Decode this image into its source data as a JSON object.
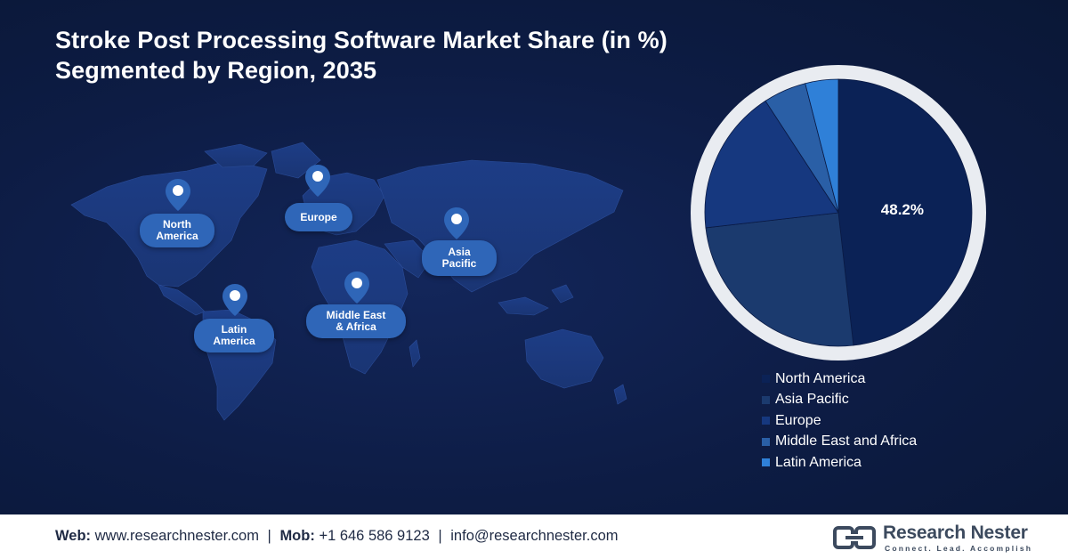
{
  "title": {
    "line1": "Stroke Post Processing Software Market Share (in %)",
    "line2": "Segmented by Region, 2035"
  },
  "map": {
    "regions": [
      {
        "key": "north_america",
        "label_line1": "North",
        "label_line2": "America"
      },
      {
        "key": "europe",
        "label_line1": "Europe",
        "label_line2": ""
      },
      {
        "key": "asia_pacific",
        "label_line1": "Asia",
        "label_line2": "Pacific"
      },
      {
        "key": "latin_america",
        "label_line1": "Latin",
        "label_line2": "America"
      },
      {
        "key": "middle_east_africa",
        "label_line1": "Middle East",
        "label_line2": "& Africa"
      }
    ]
  },
  "chart_data": {
    "type": "pie",
    "slices": [
      {
        "label": "North America",
        "value": 48.2,
        "color": "#0b2256",
        "data_label": "48.2%"
      },
      {
        "label": "Asia Pacific",
        "value": 25.0,
        "color": "#1b3a6e"
      },
      {
        "label": "Europe",
        "value": 17.6,
        "color": "#16387f"
      },
      {
        "label": "Middle East and Africa",
        "value": 5.2,
        "color": "#2a5fa6"
      },
      {
        "label": "Latin America",
        "value": 4.0,
        "color": "#2f80d8"
      }
    ],
    "legend_position": "bottom-right"
  },
  "footer": {
    "web_label": "Web:",
    "web_value": "www.researchnester.com",
    "mob_label": "Mob:",
    "mob_value": "+1 646 586 9123",
    "email_value": "info@researchnester.com",
    "separator": "|",
    "logo_name": "Research Nester",
    "logo_tagline": "Connect. Lead. Accomplish"
  },
  "colors": {
    "background": "#0d1c44",
    "label_bubble": "#2f66b8",
    "map_land": "#1b3a80"
  }
}
